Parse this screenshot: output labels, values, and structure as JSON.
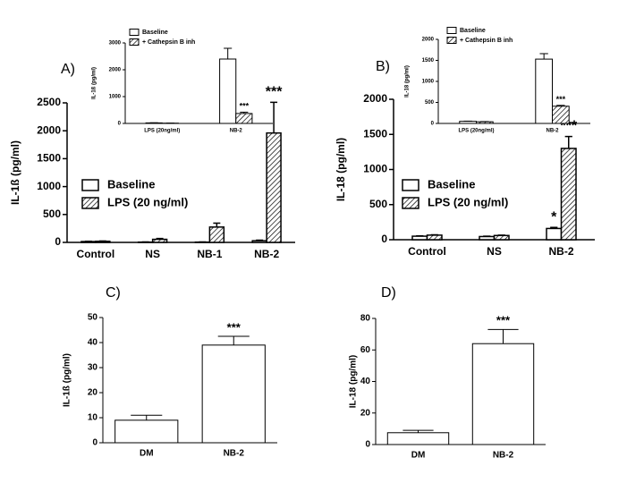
{
  "chart_data": [
    {
      "type": "bar",
      "label": "A)",
      "ylabel": "IL-1ß (pg/ml)",
      "categories": [
        "Control",
        "NS",
        "NB-1",
        "NB-2"
      ],
      "series": [
        {
          "name": "Baseline",
          "color": "#ffffff",
          "pattern": "solid",
          "values": [
            15,
            5,
            5,
            30
          ],
          "errors": [
            5,
            3,
            3,
            10
          ]
        },
        {
          "name": "LPS (20 ng/ml)",
          "color": "#000000",
          "pattern": "hatch",
          "values": [
            20,
            55,
            275,
            1960
          ],
          "errors": [
            5,
            15,
            70,
            550
          ]
        }
      ],
      "ylim": [
        0,
        2500
      ],
      "yticks": [
        0,
        500,
        1000,
        1500,
        2000,
        2500
      ],
      "annotations": [
        {
          "text": "***",
          "series": 1,
          "index": 3
        }
      ]
    },
    {
      "type": "bar",
      "ylabel": "IL-1ß (pg/ml)",
      "categories": [
        "LPS (20ng/ml)",
        "NB-2"
      ],
      "series": [
        {
          "name": "Baseline",
          "color": "#ffffff",
          "pattern": "solid",
          "values": [
            20,
            2400
          ],
          "errors": [
            5,
            400
          ]
        },
        {
          "name": "+ Cathepsin B inh",
          "color": "#000000",
          "pattern": "hatch",
          "values": [
            10,
            370
          ],
          "errors": [
            3,
            50
          ]
        }
      ],
      "ylim": [
        0,
        3000
      ],
      "yticks": [
        0,
        1000,
        2000,
        3000
      ],
      "annotations": [
        {
          "text": "***",
          "series": 1,
          "index": 1
        }
      ]
    },
    {
      "type": "bar",
      "label": "B)",
      "ylabel": "IL-18 (pg/ml)",
      "categories": [
        "Control",
        "NS",
        "NB-2"
      ],
      "series": [
        {
          "name": "Baseline",
          "color": "#ffffff",
          "pattern": "solid",
          "values": [
            50,
            45,
            160
          ],
          "errors": [
            5,
            5,
            15
          ]
        },
        {
          "name": "LPS (20 ng/ml)",
          "color": "#000000",
          "pattern": "hatch",
          "values": [
            65,
            60,
            1300
          ],
          "errors": [
            5,
            5,
            170
          ]
        }
      ],
      "ylim": [
        0,
        2000
      ],
      "yticks": [
        0,
        500,
        1000,
        1500,
        2000
      ],
      "annotations": [
        {
          "text": "*",
          "series": 0,
          "index": 2
        },
        {
          "text": "***",
          "series": 1,
          "index": 2
        }
      ]
    },
    {
      "type": "bar",
      "ylabel": "IL-18 (pg/ml)",
      "categories": [
        "LPS (20ng/ml)",
        "NB-2"
      ],
      "series": [
        {
          "name": "Baseline",
          "color": "#ffffff",
          "pattern": "solid",
          "values": [
            50,
            1530
          ],
          "errors": [
            5,
            130
          ]
        },
        {
          "name": "+ Cathepsin B inh",
          "color": "#000000",
          "pattern": "hatch",
          "values": [
            40,
            410
          ],
          "errors": [
            5,
            20
          ]
        }
      ],
      "ylim": [
        0,
        2000
      ],
      "yticks": [
        0,
        500,
        1000,
        1500,
        2000
      ],
      "annotations": [
        {
          "text": "***",
          "series": 1,
          "index": 1
        }
      ]
    },
    {
      "type": "bar",
      "label": "C)",
      "ylabel": "IL-1ß (pg/ml)",
      "categories": [
        "DM",
        "NB-2"
      ],
      "series": [
        {
          "color": "#ffffff",
          "pattern": "solid",
          "values": [
            9,
            39
          ],
          "errors": [
            2,
            3.5
          ]
        }
      ],
      "ylim": [
        0,
        50
      ],
      "yticks": [
        0,
        10,
        20,
        30,
        40,
        50
      ],
      "annotations": [
        {
          "text": "***",
          "series": 0,
          "index": 1
        }
      ]
    },
    {
      "type": "bar",
      "label": "D)",
      "ylabel": "IL-18 (pg/ml)",
      "categories": [
        "DM",
        "NB-2"
      ],
      "series": [
        {
          "color": "#ffffff",
          "pattern": "solid",
          "values": [
            7.5,
            64
          ],
          "errors": [
            1.5,
            9
          ]
        }
      ],
      "ylim": [
        0,
        80
      ],
      "yticks": [
        0,
        20,
        40,
        60,
        80
      ],
      "annotations": [
        {
          "text": "***",
          "series": 0,
          "index": 1
        }
      ]
    }
  ]
}
